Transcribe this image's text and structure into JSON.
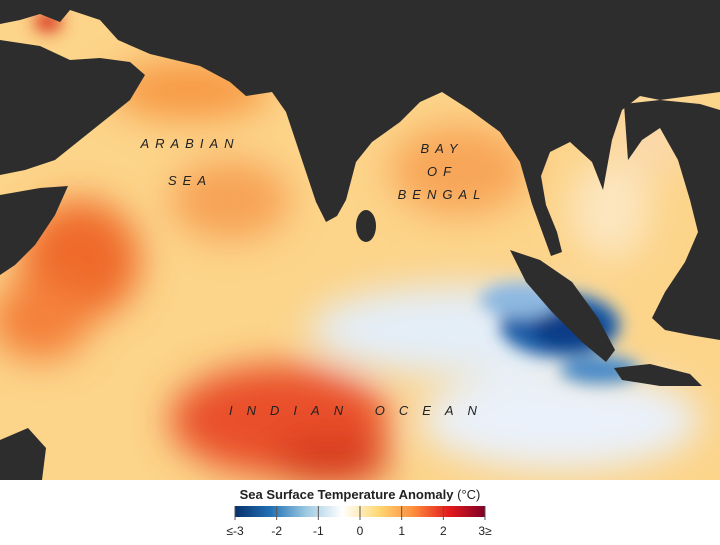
{
  "map": {
    "labels": [
      "ARABIAN",
      "SEA",
      "BAY",
      "OF",
      "BENGAL",
      "INDIAN OCEAN"
    ]
  },
  "colorbar": {
    "title": "Sea Surface Temperature Anomaly",
    "unit": "(°C)",
    "lim": [
      -3,
      3
    ],
    "ticks": [
      {
        "value": -3,
        "label": "≤-3"
      },
      -2,
      -1,
      0,
      1,
      2,
      {
        "value": 3,
        "label": "3≥"
      }
    ],
    "colors": [
      "#08306b",
      "#2171b5",
      "#9ecae1",
      "#ffffff",
      "#fed976",
      "#fd8d3c",
      "#e31a1c",
      "#800026"
    ]
  }
}
